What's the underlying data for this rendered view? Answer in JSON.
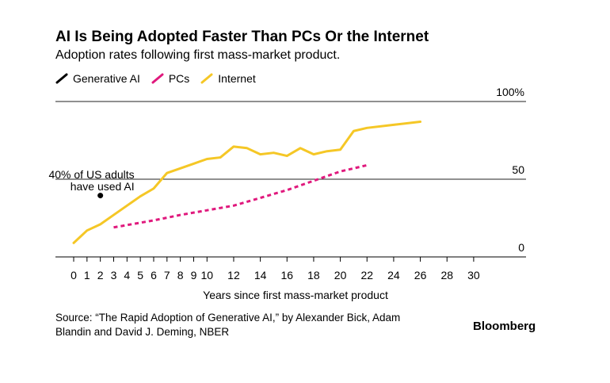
{
  "chart_data": {
    "type": "line",
    "title": "AI Is Being Adopted Faster Than PCs Or the Internet",
    "subtitle": "Adoption rates following first mass-market product.",
    "xlabel": "Years since first mass-market product",
    "ylabel": "",
    "xlim": [
      -1.5,
      32.5
    ],
    "ylim": [
      0,
      100
    ],
    "x_ticks": [
      "0",
      "1",
      "2",
      "3",
      "4",
      "5",
      "6",
      "7",
      "8",
      "9",
      "10",
      "12",
      "14",
      "16",
      "18",
      "20",
      "22",
      "24",
      "26",
      "28",
      "30"
    ],
    "y_ticks": [
      "0",
      "50",
      "100%"
    ],
    "gridlines_at": [
      0,
      50,
      100
    ],
    "legend_position": "top-left",
    "series": [
      {
        "name": "Generative AI",
        "color": "#000000",
        "style": "point",
        "x": [
          2
        ],
        "y": [
          39.5
        ]
      },
      {
        "name": "PCs",
        "color": "#e0197d",
        "style": "dashed",
        "x": [
          3,
          4,
          6,
          8,
          10,
          12,
          14,
          16,
          18,
          20,
          22
        ],
        "y": [
          19,
          20.5,
          23.5,
          27,
          30,
          33,
          38,
          43,
          49,
          55,
          59
        ]
      },
      {
        "name": "Internet",
        "color": "#f5c726",
        "style": "solid",
        "x": [
          0,
          1,
          2,
          3,
          4,
          5,
          6,
          7,
          8,
          9,
          10,
          11,
          12,
          13,
          14,
          15,
          16,
          17,
          18,
          19,
          20,
          21,
          22,
          24,
          26
        ],
        "y": [
          9,
          17,
          21,
          27,
          33,
          39,
          44,
          54,
          57,
          60,
          63,
          64,
          71,
          70,
          66,
          67,
          65,
          70,
          66,
          68,
          69,
          81,
          83,
          85,
          87
        ]
      }
    ],
    "annotations": [
      {
        "text_lines": [
          "40% of US adults",
          "have used AI"
        ],
        "x": 2,
        "y": 40
      }
    ]
  },
  "source": "Source: “The Rapid Adoption of Generative AI,” by Alexander Bick, Adam Blandin and David J. Deming, NBER",
  "brand": "Bloomberg"
}
